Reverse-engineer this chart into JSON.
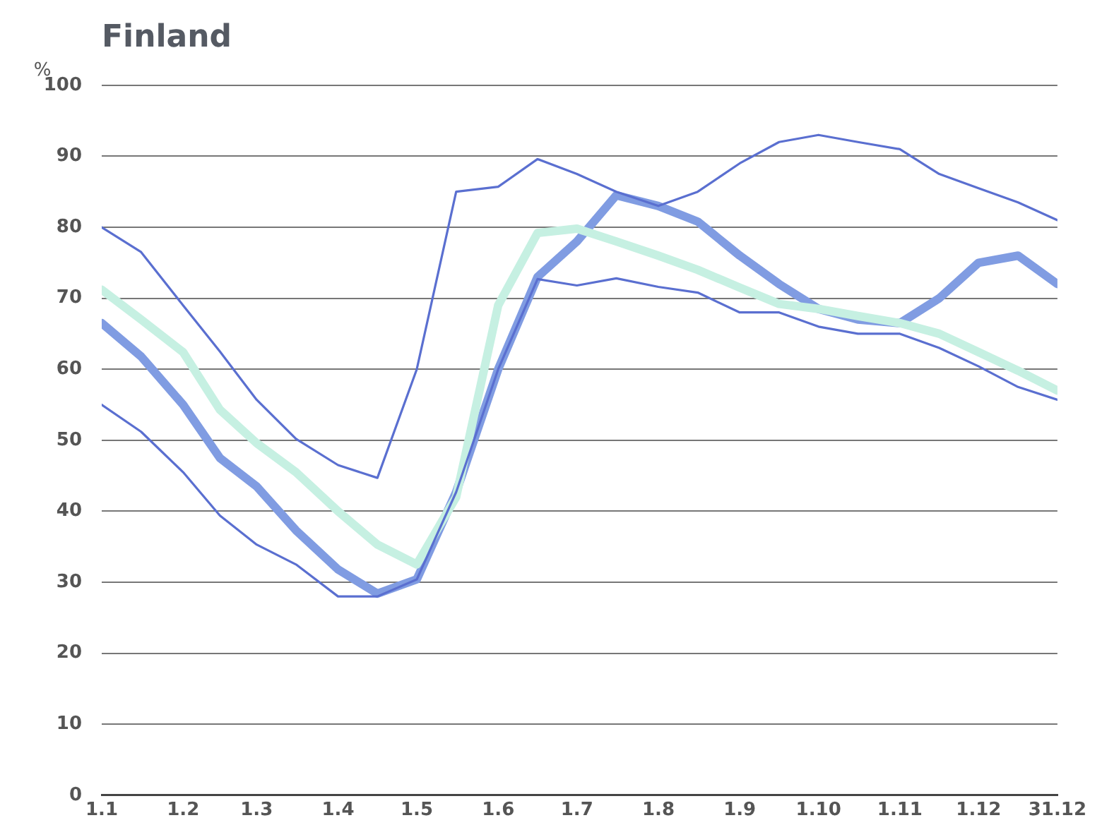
{
  "chart_data": {
    "type": "line",
    "title": "Finland",
    "ylabel": "%",
    "x": [
      "--01-01",
      "--01-16",
      "--02-01",
      "--02-15",
      "--03-01",
      "--03-16",
      "--04-01",
      "--04-16",
      "--05-01",
      "--05-16",
      "--06-01",
      "--06-16",
      "--07-01",
      "--07-16",
      "--08-01",
      "--08-16",
      "--09-01",
      "--09-16",
      "--10-01",
      "--10-16",
      "--11-01",
      "--11-16",
      "--12-01",
      "--12-16",
      "--12-31"
    ],
    "series": [
      {
        "color": "#5a6fd0",
        "values": [
          80,
          76.5,
          69,
          62.5,
          55.7,
          50.2,
          46.5,
          44.7,
          60,
          85,
          85.7,
          89.6,
          87.5,
          85,
          83,
          85,
          89,
          92,
          93,
          92,
          91,
          87.5,
          85.5,
          83.5,
          81
        ]
      },
      {
        "color": "#5a6fd0",
        "values": [
          55,
          51.2,
          45.5,
          39.4,
          35.3,
          32.5,
          28,
          28,
          30.4,
          42.7,
          60,
          72.7,
          71.8,
          72.8,
          71.6,
          70.8,
          68,
          68,
          66,
          65,
          65,
          63,
          60.4,
          57.5,
          55.7
        ]
      },
      {
        "color": "#c6f0e2",
        "values": [
          71.2,
          67,
          62.4,
          54.3,
          49.6,
          45.5,
          40,
          35.3,
          32.5,
          42,
          69,
          79.2,
          79.8,
          78,
          76,
          74,
          71.5,
          69.2,
          68.5,
          67.5,
          66.5,
          65,
          62.4,
          59.8,
          57
        ]
      },
      {
        "color": "#809ce2",
        "values": [
          66.5,
          61.8,
          55,
          47.5,
          43.5,
          37.3,
          31.8,
          28.4,
          30.4,
          42.7,
          60,
          73,
          78,
          84.5,
          83,
          80.8,
          76,
          72,
          68.5,
          67,
          66.5,
          70,
          75,
          76,
          72
        ]
      }
    ],
    "xlim": [
      "--01-01",
      "--12-31"
    ],
    "xticks": [
      {
        "value": "--01-01",
        "label": "1.1"
      },
      {
        "value": "--02-01",
        "label": "1.2"
      },
      {
        "value": "--03-01",
        "label": "1.3"
      },
      {
        "value": "--04-01",
        "label": "1.4"
      },
      {
        "value": "--05-01",
        "label": "1.5"
      },
      {
        "value": "--06-01",
        "label": "1.6"
      },
      {
        "value": "--07-01",
        "label": "1.7"
      },
      {
        "value": "--08-01",
        "label": "1.8"
      },
      {
        "value": "--09-01",
        "label": "1.9"
      },
      {
        "value": "--10-01",
        "label": "1.10"
      },
      {
        "value": "--11-01",
        "label": "1.11"
      },
      {
        "value": "--12-01",
        "label": "1.12"
      },
      {
        "value": "--12-31",
        "label": "31.12"
      }
    ],
    "ylim": [
      0,
      100
    ],
    "yticks": [
      0,
      10,
      20,
      30,
      40,
      50,
      60,
      70,
      80,
      90,
      100
    ],
    "grid": "y",
    "legend": false,
    "marker": "none",
    "line_style": "solid"
  }
}
